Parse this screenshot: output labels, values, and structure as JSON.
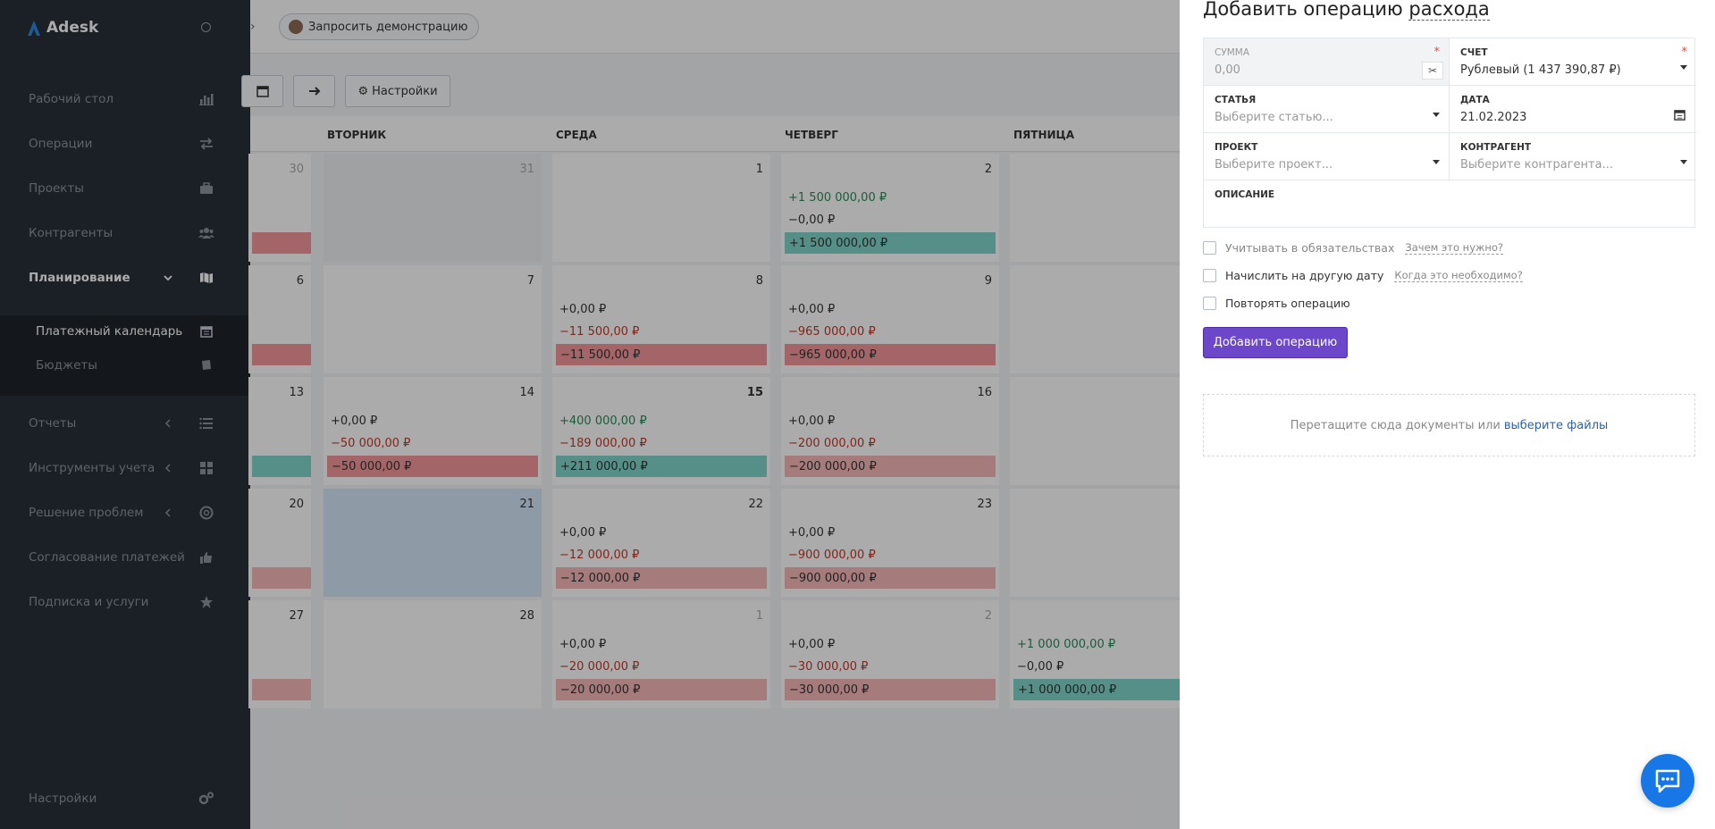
{
  "app": {
    "name": "Adesk"
  },
  "sidebar": {
    "items": [
      {
        "label": "Рабочий стол",
        "icon": "bar-chart-icon"
      },
      {
        "label": "Операции",
        "icon": "exchange-icon"
      },
      {
        "label": "Проекты",
        "icon": "briefcase-icon"
      },
      {
        "label": "Контрагенты",
        "icon": "users-icon"
      },
      {
        "label": "Планирование",
        "icon": "map-icon"
      },
      {
        "label": "Отчеты",
        "icon": "list-icon"
      },
      {
        "label": "Инструменты учета",
        "icon": "grid-icon"
      },
      {
        "label": "Решение проблем",
        "icon": "lifebuoy-icon"
      },
      {
        "label": "Согласование платежей",
        "icon": "thumbs-up-icon"
      },
      {
        "label": "Подписка и услуги",
        "icon": "star-icon"
      }
    ],
    "subitems": [
      {
        "label": "Платежный календарь",
        "icon": "calendar-icon"
      },
      {
        "label": "Бюджеты",
        "icon": "book-icon"
      }
    ],
    "settings": {
      "label": "Настройки",
      "icon": "gears-icon"
    }
  },
  "topbar": {
    "demo_label": "Запросить демонстрацию"
  },
  "toolbar": {
    "settings_label": "Настройки"
  },
  "calendar": {
    "weekdays": [
      "ВТОРНИК",
      "СРЕДА",
      "ЧЕТВЕРГ",
      "ПЯТНИЦА"
    ],
    "rows": [
      {
        "cells": [
          {
            "day": "30",
            "muted": true
          },
          {
            "day": "31",
            "muted": true
          },
          {
            "day": "1"
          },
          {
            "day": "2",
            "income": "+1 500 000,00 ₽",
            "expense": "−0,00 ₽",
            "balance": "+1 500 000,00 ₽",
            "balance_type": "pos"
          }
        ]
      },
      {
        "cells": [
          {
            "day": "6"
          },
          {
            "day": "7"
          },
          {
            "day": "8",
            "income": "+0,00 ₽",
            "expense": "−11 500,00 ₽",
            "balance": "−11 500,00 ₽",
            "balance_type": "neg"
          },
          {
            "day": "9",
            "income": "+0,00 ₽",
            "expense": "−965 000,00 ₽",
            "balance": "−965 000,00 ₽",
            "balance_type": "neg"
          }
        ]
      },
      {
        "cells": [
          {
            "day": "13"
          },
          {
            "day": "14",
            "income": "+0,00 ₽",
            "expense": "−50 000,00 ₽",
            "balance": "−50 000,00 ₽",
            "balance_type": "neg"
          },
          {
            "day": "15",
            "income": "+400 000,00 ₽",
            "expense": "−189 000,00 ₽",
            "balance": "+211 000,00 ₽",
            "balance_type": "pos",
            "bold": true
          },
          {
            "day": "16",
            "income": "+0,00 ₽",
            "expense": "−200 000,00 ₽",
            "balance": "−200 000,00 ₽",
            "balance_type": "negl"
          }
        ]
      },
      {
        "cells": [
          {
            "day": "20"
          },
          {
            "day": "21",
            "today": true
          },
          {
            "day": "22",
            "income": "+0,00 ₽",
            "expense": "−12 000,00 ₽",
            "balance": "−12 000,00 ₽",
            "balance_type": "negl"
          },
          {
            "day": "23",
            "income": "+0,00 ₽",
            "expense": "−900 000,00 ₽",
            "balance": "−900 000,00 ₽",
            "balance_type": "negl"
          }
        ]
      },
      {
        "cells": [
          {
            "day": "27"
          },
          {
            "day": "28"
          },
          {
            "day": "1",
            "muted": true,
            "income": "+0,00 ₽",
            "expense": "−20 000,00 ₽",
            "balance": "−20 000,00 ₽",
            "balance_type": "negl"
          },
          {
            "day": "2",
            "muted": true,
            "income": "+0,00 ₽",
            "expense": "−30 000,00 ₽",
            "balance": "−30 000,00 ₽",
            "balance_type": "negl"
          }
        ]
      }
    ],
    "friday_last": {
      "income": "+1 000 000,00 ₽",
      "expense": "−0,00 ₽",
      "balance": "+1 000 000,00 ₽"
    }
  },
  "panel": {
    "title_prefix": "Добавить операцию",
    "title_type": "расхода",
    "amount": {
      "label": "СУММА",
      "placeholder": "0,00"
    },
    "account": {
      "label": "СЧЕТ",
      "value": "Рублевый (1 437 390,87 ₽)"
    },
    "article": {
      "label": "СТАТЬЯ",
      "placeholder": "Выберите статью..."
    },
    "date": {
      "label": "ДАТА",
      "value": "21.02.2023"
    },
    "project": {
      "label": "ПРОЕКТ",
      "placeholder": "Выберите проект..."
    },
    "counterparty": {
      "label": "КОНТРАГЕНТ",
      "placeholder": "Выберите контрагента..."
    },
    "description": {
      "label": "ОПИСАНИЕ"
    },
    "checkbox_obligations": {
      "label": "Учитывать в обязательствах",
      "hint": "Зачем это нужно?"
    },
    "checkbox_other_date": {
      "label": "Начислить на другую дату",
      "hint": "Когда это необходимо?"
    },
    "checkbox_repeat": {
      "label": "Повторять операцию"
    },
    "submit_label": "Добавить операцию",
    "dropzone_text": "Перетащите сюда документы или",
    "dropzone_link": "выберите файлы"
  },
  "colors": {
    "accent": "#6c47c9",
    "sidebar": "#283039",
    "income": "#2a8a5a",
    "expense": "#c0392b",
    "positive_balance": "#7fd6cb",
    "negative_balance": "#f5979b"
  }
}
